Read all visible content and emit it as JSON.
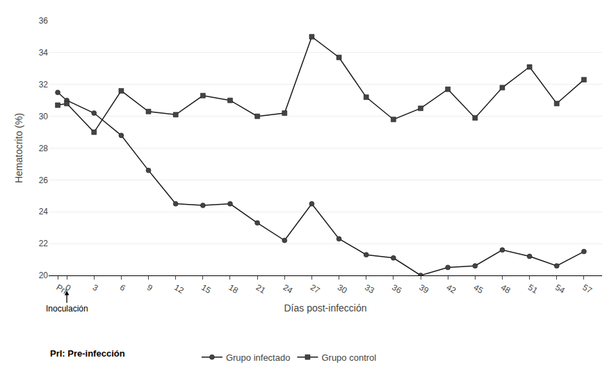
{
  "chart_data": {
    "type": "line",
    "x": [
      -1,
      0,
      3,
      6,
      9,
      12,
      15,
      18,
      21,
      24,
      27,
      30,
      33,
      36,
      39,
      42,
      45,
      48,
      51,
      54,
      57
    ],
    "series": [
      {
        "name": "Grupo infectado",
        "color": "#1a1a1a",
        "marker": "circle",
        "values": [
          31.5,
          31.0,
          30.2,
          28.8,
          26.6,
          24.5,
          24.4,
          24.5,
          23.3,
          22.2,
          24.5,
          22.3,
          21.3,
          21.1,
          20.0,
          20.5,
          20.6,
          21.6,
          21.2,
          20.6,
          21.5
        ]
      },
      {
        "name": "Grupo control",
        "color": "#1a1a1a",
        "marker": "square",
        "values": [
          30.7,
          30.8,
          29.0,
          31.6,
          30.3,
          30.1,
          31.3,
          31.0,
          30.0,
          30.2,
          35.0,
          33.7,
          31.2,
          29.8,
          30.5,
          31.7,
          29.9,
          31.8,
          33.1,
          30.8,
          32.3
        ]
      }
    ],
    "xlabel": "Días post-infección",
    "ylabel": "Hematocrito (%)",
    "xlim": [
      -2,
      59
    ],
    "xticks": [
      {
        "value": -1,
        "label": "PrI"
      },
      0,
      3,
      6,
      9,
      12,
      15,
      18,
      21,
      24,
      27,
      30,
      33,
      36,
      39,
      42,
      45,
      48,
      51,
      54,
      57
    ],
    "ylim": [
      20,
      36
    ],
    "yticks": [
      20,
      22,
      24,
      26,
      28,
      30,
      32,
      34,
      36
    ],
    "grid": "y",
    "legend": "bottom",
    "annotations": [
      {
        "text": "Inoculación",
        "x": 0
      },
      {
        "text": "PrI: Pre-infección"
      }
    ]
  }
}
